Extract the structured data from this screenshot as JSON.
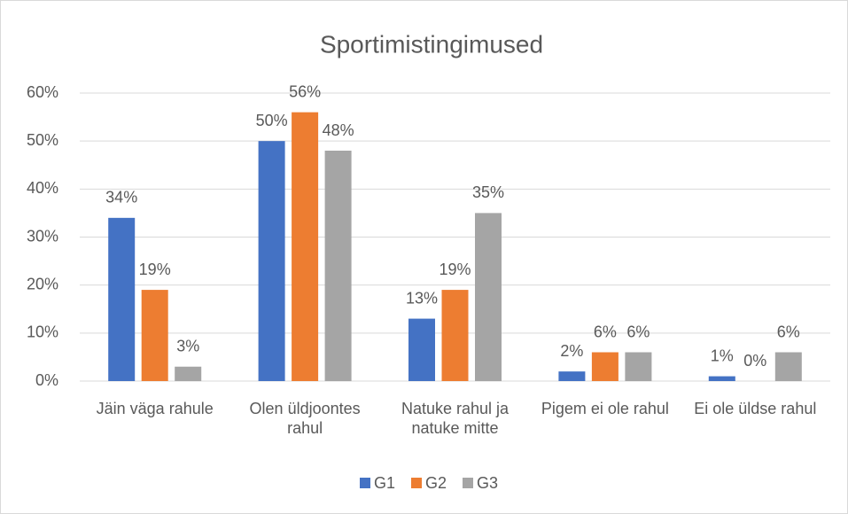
{
  "chart_data": {
    "type": "bar",
    "title": "Sportimistingimused",
    "categories": [
      "Jäin väga rahule",
      "Olen üldjoontes rahul",
      "Natuke rahul ja natuke mitte",
      "Pigem ei ole rahul",
      "Ei ole üldse rahul"
    ],
    "series": [
      {
        "name": "G1",
        "color": "#4472c4",
        "values": [
          34,
          50,
          13,
          2,
          1
        ],
        "value_labels": [
          "34%",
          "50%",
          "13%",
          "2%",
          "1%"
        ]
      },
      {
        "name": "G2",
        "color": "#ed7d31",
        "values": [
          19,
          56,
          19,
          6,
          0
        ],
        "value_labels": [
          "19%",
          "56%",
          "19%",
          "6%",
          "0%"
        ]
      },
      {
        "name": "G3",
        "color": "#a5a5a5",
        "values": [
          3,
          48,
          35,
          6,
          6
        ],
        "value_labels": [
          "3%",
          "48%",
          "35%",
          "6%",
          "6%"
        ]
      }
    ],
    "ylim": [
      0,
      60
    ],
    "yticks": [
      {
        "value": 0,
        "label": "0%"
      },
      {
        "value": 10,
        "label": "10%"
      },
      {
        "value": 20,
        "label": "20%"
      },
      {
        "value": 30,
        "label": "30%"
      },
      {
        "value": 40,
        "label": "40%"
      },
      {
        "value": 50,
        "label": "50%"
      },
      {
        "value": 60,
        "label": "60%"
      }
    ],
    "grid": true,
    "legend": "bottom"
  }
}
